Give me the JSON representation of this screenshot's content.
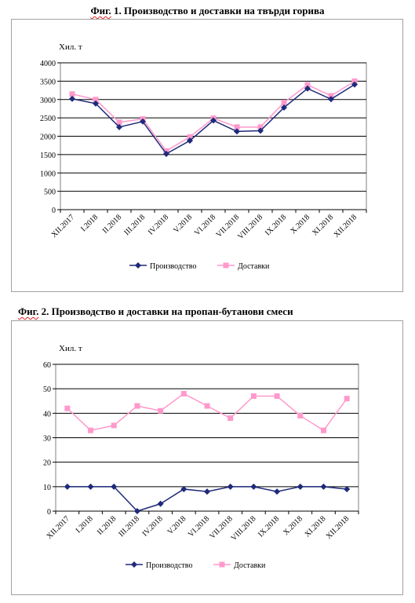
{
  "figures": [
    {
      "title_prefix": "Фиг.",
      "title_rest": " 1. Производство и доставки на твърди горива"
    },
    {
      "title_prefix": "Фиг.",
      "title_rest": " 2. Производство и доставки на пропан-бутанови смеси"
    }
  ],
  "colors": {
    "production": "#1f2a7a",
    "deliveries": "#ff99cc",
    "grid": "#000000"
  },
  "chart_data": [
    {
      "type": "line",
      "ylabel": "Хил. т",
      "ylim": [
        0,
        4000
      ],
      "yticks": [
        0,
        500,
        1000,
        1500,
        2000,
        2500,
        3000,
        3500,
        4000
      ],
      "grid": true,
      "legend": "bottom",
      "categories": [
        "XII.2017",
        "I.2018",
        "II.2018",
        "III.2018",
        "IV.2018",
        "V.2018",
        "VI.2018",
        "VII.2018",
        "VIII.2018",
        "IX.2018",
        "X.2018",
        "XI.2018",
        "XII.2018"
      ],
      "series": [
        {
          "name": "Производство",
          "marker": "diamond",
          "values": [
            3020,
            2890,
            2250,
            2400,
            1520,
            1880,
            2430,
            2130,
            2150,
            2780,
            3300,
            3010,
            3410
          ]
        },
        {
          "name": "Доставки",
          "marker": "square",
          "values": [
            3150,
            3000,
            2380,
            2470,
            1600,
            1980,
            2490,
            2250,
            2250,
            2920,
            3400,
            3100,
            3500
          ]
        }
      ]
    },
    {
      "type": "line",
      "ylabel": "Хил. т",
      "ylim": [
        0,
        60
      ],
      "yticks": [
        0,
        10,
        20,
        30,
        40,
        50,
        60
      ],
      "grid": true,
      "legend": "bottom",
      "categories": [
        "XII.2017",
        "I.2018",
        "II.2018",
        "III.2018",
        "IV.2018",
        "V.2018",
        "VI.2018",
        "VII.2018",
        "VIII.2018",
        "IX.2018",
        "X.2018",
        "XI.2018",
        "XII.2018"
      ],
      "series": [
        {
          "name": "Производство",
          "marker": "diamond",
          "values": [
            10,
            10,
            10,
            0,
            3,
            9,
            8,
            10,
            10,
            8,
            10,
            10,
            9
          ]
        },
        {
          "name": "Доставки",
          "marker": "square",
          "values": [
            42,
            33,
            35,
            43,
            41,
            48,
            43,
            38,
            47,
            47,
            39,
            33,
            46
          ]
        }
      ]
    }
  ]
}
